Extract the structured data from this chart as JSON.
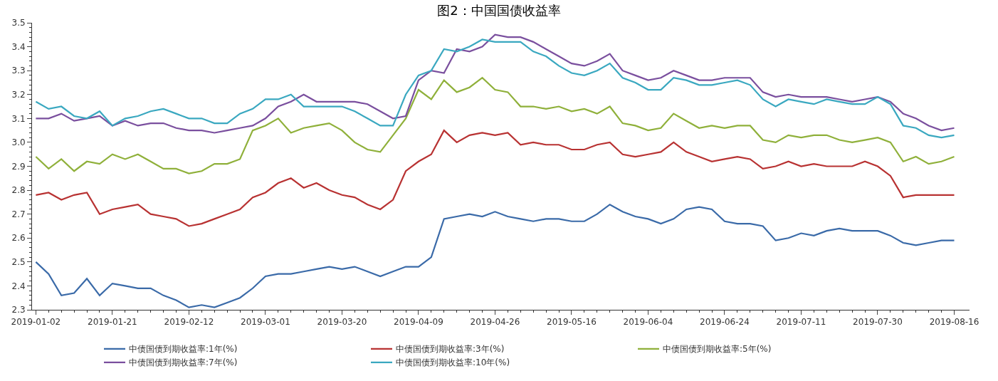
{
  "chart_data": {
    "type": "line",
    "title": "图2：中国国债收益率",
    "categories": [
      "2019-01-02",
      null,
      null,
      null,
      null,
      null,
      "2019-01-21",
      null,
      null,
      null,
      null,
      null,
      "2019-02-12",
      null,
      null,
      null,
      null,
      null,
      "2019-03-01",
      null,
      null,
      null,
      null,
      null,
      "2019-03-20",
      null,
      null,
      null,
      null,
      null,
      "2019-04-09",
      null,
      null,
      null,
      null,
      null,
      "2019-04-26",
      null,
      null,
      null,
      null,
      null,
      "2019-05-16",
      null,
      null,
      null,
      null,
      null,
      "2019-06-04",
      null,
      null,
      null,
      null,
      null,
      "2019-06-24",
      null,
      null,
      null,
      null,
      null,
      "2019-07-11",
      null,
      null,
      null,
      null,
      null,
      "2019-07-30",
      null,
      null,
      null,
      null,
      null,
      "2019-08-16"
    ],
    "ylim": [
      2.3,
      3.5
    ],
    "yticks": [
      2.3,
      2.4,
      2.5,
      2.6,
      2.7,
      2.8,
      2.9,
      {
        "value": 3.0,
        "label": "3.0"
      },
      3.1,
      3.2,
      3.3,
      3.4,
      3.5
    ],
    "grid": false,
    "legend": "bottom",
    "marker": "none",
    "line_style": "solid",
    "series": [
      {
        "name": "中债国债到期收益率:1年(%)",
        "color": "#3a6aa8",
        "values": [
          2.5,
          2.45,
          2.36,
          2.37,
          2.43,
          2.36,
          2.41,
          2.4,
          2.39,
          2.39,
          2.36,
          2.34,
          2.31,
          2.32,
          2.31,
          2.33,
          2.35,
          2.39,
          2.44,
          2.45,
          2.45,
          2.46,
          2.47,
          2.48,
          2.47,
          2.48,
          2.46,
          2.44,
          2.46,
          2.48,
          2.48,
          2.52,
          2.68,
          2.69,
          2.7,
          2.69,
          2.71,
          2.69,
          2.68,
          2.67,
          2.68,
          2.68,
          2.67,
          2.67,
          2.7,
          2.74,
          2.71,
          2.69,
          2.68,
          2.66,
          2.68,
          2.72,
          2.73,
          2.72,
          2.67,
          2.66,
          2.66,
          2.65,
          2.59,
          2.6,
          2.62,
          2.61,
          2.63,
          2.64,
          2.63,
          2.63,
          2.63,
          2.61,
          2.58,
          2.57,
          2.58,
          2.59,
          2.59
        ]
      },
      {
        "name": "中债国债到期收益率:3年(%)",
        "color": "#b83232",
        "values": [
          2.78,
          2.79,
          2.76,
          2.78,
          2.79,
          2.7,
          2.72,
          2.73,
          2.74,
          2.7,
          2.69,
          2.68,
          2.65,
          2.66,
          2.68,
          2.7,
          2.72,
          2.77,
          2.79,
          2.83,
          2.85,
          2.81,
          2.83,
          2.8,
          2.78,
          2.77,
          2.74,
          2.72,
          2.76,
          2.88,
          2.92,
          2.95,
          3.05,
          3.0,
          3.03,
          3.04,
          3.03,
          3.04,
          2.99,
          3.0,
          2.99,
          2.99,
          2.97,
          2.97,
          2.99,
          3.0,
          2.95,
          2.94,
          2.95,
          2.96,
          3.0,
          2.96,
          2.94,
          2.92,
          2.93,
          2.94,
          2.93,
          2.89,
          2.9,
          2.92,
          2.9,
          2.91,
          2.9,
          2.9,
          2.9,
          2.92,
          2.9,
          2.86,
          2.77,
          2.78,
          2.78,
          2.78,
          2.78
        ]
      },
      {
        "name": "中债国债到期收益率:5年(%)",
        "color": "#8fb03a",
        "values": [
          2.94,
          2.89,
          2.93,
          2.88,
          2.92,
          2.91,
          2.95,
          2.93,
          2.95,
          2.92,
          2.89,
          2.89,
          2.87,
          2.88,
          2.91,
          2.91,
          2.93,
          3.05,
          3.07,
          3.1,
          3.04,
          3.06,
          3.07,
          3.08,
          3.05,
          3.0,
          2.97,
          2.96,
          3.03,
          3.1,
          3.22,
          3.18,
          3.26,
          3.21,
          3.23,
          3.27,
          3.22,
          3.21,
          3.15,
          3.15,
          3.14,
          3.15,
          3.13,
          3.14,
          3.12,
          3.15,
          3.08,
          3.07,
          3.05,
          3.06,
          3.12,
          3.09,
          3.06,
          3.07,
          3.06,
          3.07,
          3.07,
          3.01,
          3.0,
          3.03,
          3.02,
          3.03,
          3.03,
          3.01,
          3.0,
          3.01,
          3.02,
          3.0,
          2.92,
          2.94,
          2.91,
          2.92,
          2.94
        ]
      },
      {
        "name": "中债国债到期收益率:7年(%)",
        "color": "#7a4f9e",
        "values": [
          3.1,
          3.1,
          3.12,
          3.09,
          3.1,
          3.11,
          3.07,
          3.09,
          3.07,
          3.08,
          3.08,
          3.06,
          3.05,
          3.05,
          3.04,
          3.05,
          3.06,
          3.07,
          3.1,
          3.15,
          3.17,
          3.2,
          3.17,
          3.17,
          3.17,
          3.17,
          3.16,
          3.13,
          3.1,
          3.11,
          3.26,
          3.3,
          3.29,
          3.39,
          3.38,
          3.4,
          3.45,
          3.44,
          3.44,
          3.42,
          3.39,
          3.36,
          3.33,
          3.32,
          3.34,
          3.37,
          3.3,
          3.28,
          3.26,
          3.27,
          3.3,
          3.28,
          3.26,
          3.26,
          3.27,
          3.27,
          3.27,
          3.21,
          3.19,
          3.2,
          3.19,
          3.19,
          3.19,
          3.18,
          3.17,
          3.18,
          3.19,
          3.17,
          3.12,
          3.1,
          3.07,
          3.05,
          3.06
        ]
      },
      {
        "name": "中债国债到期收益率:10年(%)",
        "color": "#3aa8c0",
        "values": [
          3.17,
          3.14,
          3.15,
          3.11,
          3.1,
          3.13,
          3.07,
          3.1,
          3.11,
          3.13,
          3.14,
          3.12,
          3.1,
          3.1,
          3.08,
          3.08,
          3.12,
          3.14,
          3.18,
          3.18,
          3.2,
          3.15,
          3.15,
          3.15,
          3.15,
          3.13,
          3.1,
          3.07,
          3.07,
          3.2,
          3.28,
          3.3,
          3.39,
          3.38,
          3.4,
          3.43,
          3.42,
          3.42,
          3.42,
          3.38,
          3.36,
          3.32,
          3.29,
          3.28,
          3.3,
          3.33,
          3.27,
          3.25,
          3.22,
          3.22,
          3.27,
          3.26,
          3.24,
          3.24,
          3.25,
          3.26,
          3.24,
          3.18,
          3.15,
          3.18,
          3.17,
          3.16,
          3.18,
          3.17,
          3.16,
          3.16,
          3.19,
          3.16,
          3.07,
          3.06,
          3.03,
          3.02,
          3.03
        ]
      }
    ]
  }
}
